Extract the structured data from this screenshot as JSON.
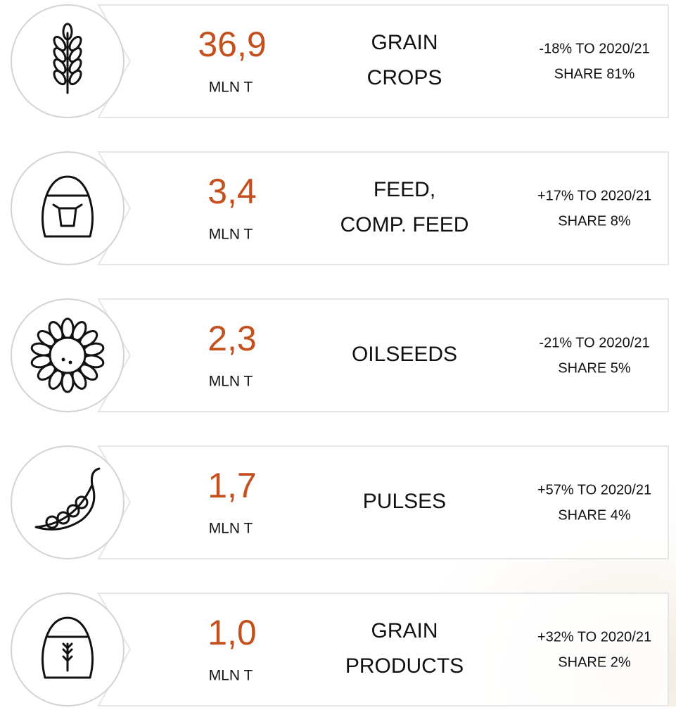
{
  "rows": [
    {
      "value": "36,9",
      "unit": "MLN T",
      "label": [
        "GRAIN",
        "CROPS"
      ],
      "change": [
        "-18% TO 2020/21",
        "SHARE 81%"
      ]
    },
    {
      "value": "3,4",
      "unit": "MLN T",
      "label": [
        "FEED,",
        "COMP. FEED"
      ],
      "change": [
        "+17% TO 2020/21",
        "SHARE 8%"
      ]
    },
    {
      "value": "2,3",
      "unit": "MLN T",
      "label": [
        "OILSEEDS"
      ],
      "change": [
        "-21% TO 2020/21",
        "SHARE 5%"
      ]
    },
    {
      "value": "1,7",
      "unit": "MLN T",
      "label": [
        "PULSES"
      ],
      "change": [
        "+57% TO 2020/21",
        "SHARE 4%"
      ]
    },
    {
      "value": "1,0",
      "unit": "MLN T",
      "label": [
        "GRAIN",
        "PRODUCTS"
      ],
      "change": [
        "+32% TO 2020/21",
        "SHARE 2%"
      ]
    }
  ]
}
